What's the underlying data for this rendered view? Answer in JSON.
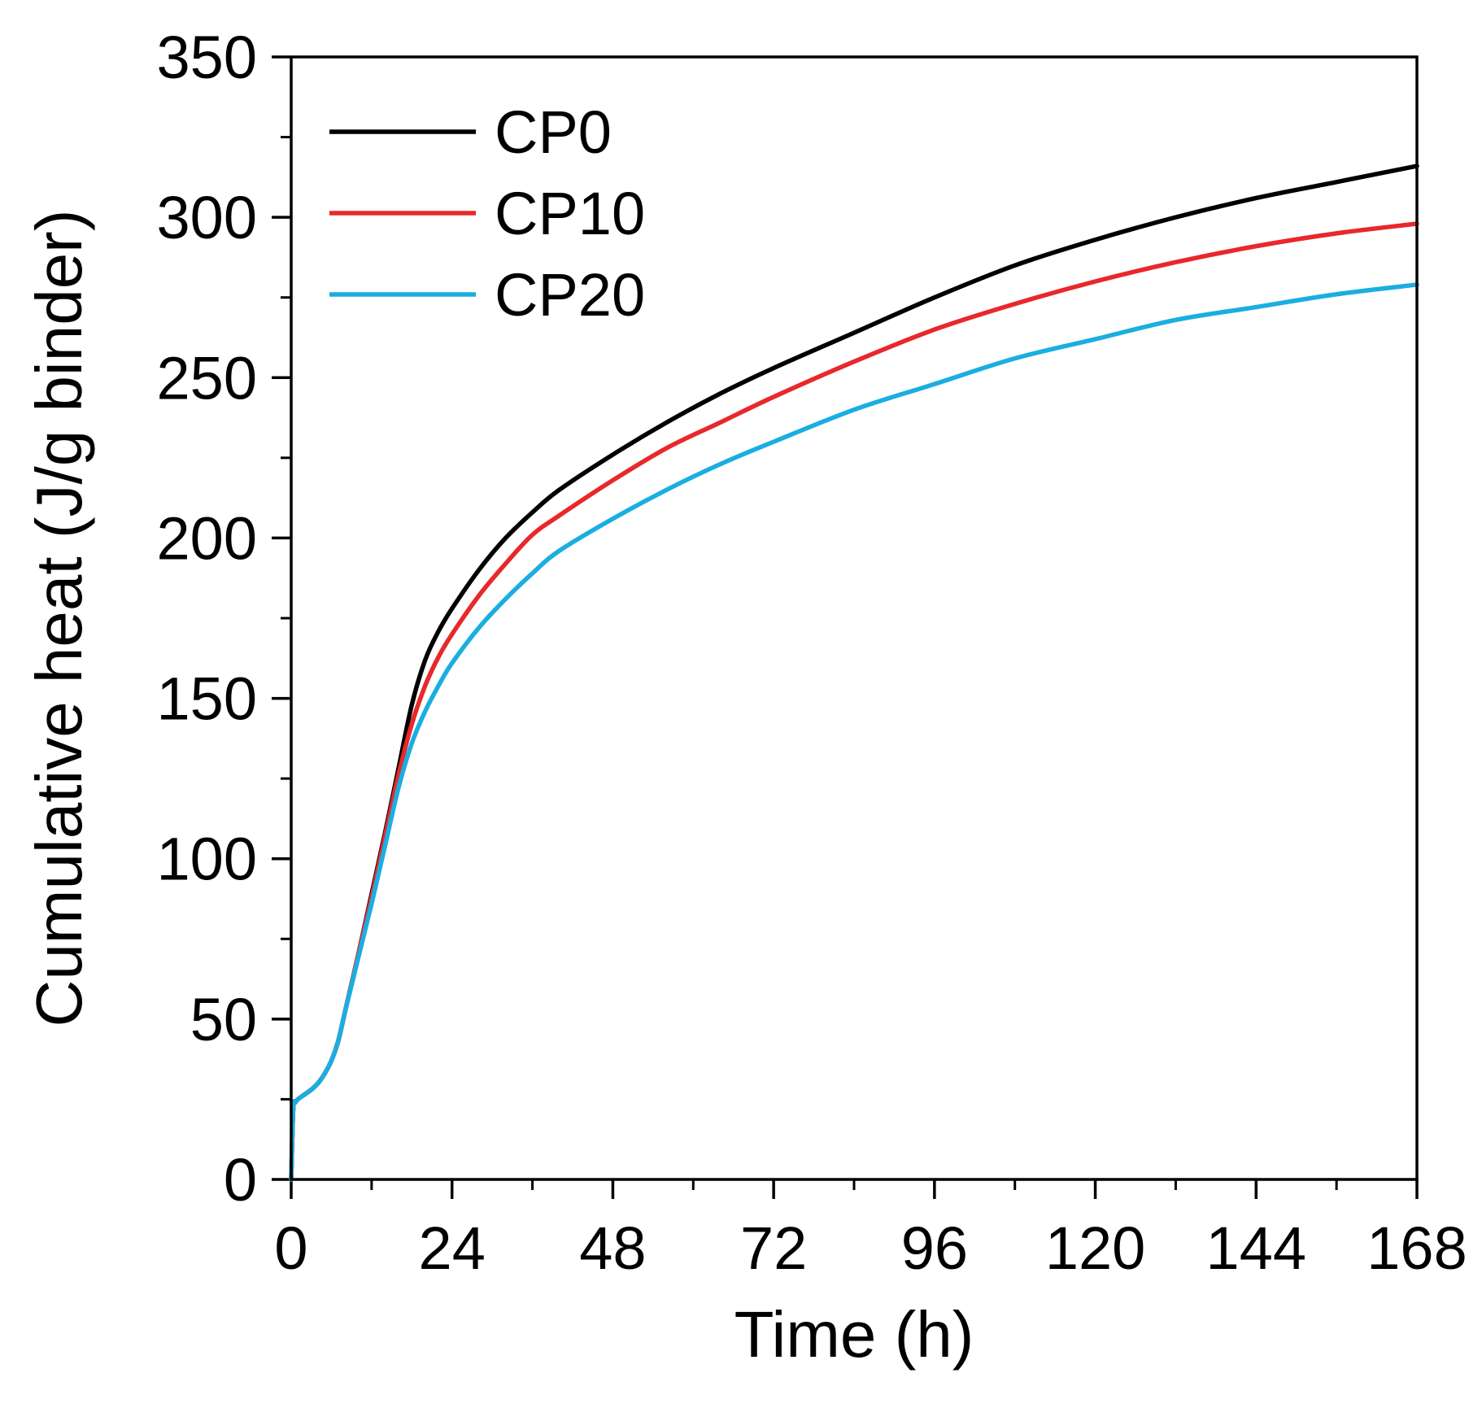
{
  "chart_data": {
    "type": "line",
    "title": "",
    "xlabel": "Time (h)",
    "ylabel": "Cumulative heat (J/g binder)",
    "xlim": [
      0,
      168
    ],
    "ylim": [
      0,
      350
    ],
    "xticks": [
      0,
      24,
      48,
      72,
      96,
      120,
      144,
      168
    ],
    "xtick_labels": [
      "0",
      "24",
      "48",
      "72",
      "96",
      "120",
      "144",
      "168"
    ],
    "yticks": [
      0,
      50,
      100,
      150,
      200,
      250,
      300,
      350
    ],
    "ytick_labels": [
      "0",
      "50",
      "100",
      "150",
      "200",
      "250",
      "300",
      "350"
    ],
    "x_minor_step": 12,
    "y_minor_step": 25,
    "grid": false,
    "legend_position": "top-left",
    "series": [
      {
        "name": "CP0",
        "color": "#000000",
        "x": [
          0,
          0.3,
          0.6,
          1,
          2,
          3,
          4,
          5,
          6,
          7,
          8,
          10,
          12,
          14,
          16,
          18,
          20,
          22,
          24,
          28,
          32,
          36,
          40,
          48,
          56,
          64,
          72,
          84,
          96,
          108,
          120,
          132,
          144,
          156,
          168
        ],
        "y": [
          0,
          22,
          24,
          25,
          26.5,
          28,
          30,
          33,
          37,
          43,
          52,
          70,
          89,
          108,
          128,
          148,
          162,
          171,
          178,
          190,
          200,
          208,
          215,
          226,
          236,
          245,
          253,
          264,
          275,
          285,
          293,
          300,
          306,
          311,
          316
        ]
      },
      {
        "name": "CP10",
        "color": "#e8282b",
        "x": [
          0,
          0.3,
          0.6,
          1,
          2,
          3,
          4,
          5,
          6,
          7,
          8,
          10,
          12,
          14,
          16,
          18,
          20,
          22,
          24,
          28,
          32,
          36,
          40,
          48,
          56,
          64,
          72,
          84,
          96,
          108,
          120,
          132,
          144,
          156,
          168
        ],
        "y": [
          0,
          22,
          24,
          25,
          26.5,
          28,
          30,
          33,
          37,
          43,
          52,
          70,
          88,
          107,
          126,
          142,
          154,
          163,
          170,
          182,
          192,
          201,
          207,
          218,
          228,
          236,
          244,
          255,
          265,
          273,
          280,
          286,
          291,
          295,
          298
        ]
      },
      {
        "name": "CP20",
        "color": "#1aaee1",
        "x": [
          0,
          0.3,
          0.6,
          1,
          2,
          3,
          4,
          5,
          6,
          7,
          8,
          10,
          12,
          14,
          16,
          18,
          20,
          22,
          24,
          28,
          32,
          36,
          40,
          48,
          56,
          64,
          72,
          84,
          96,
          108,
          120,
          132,
          144,
          156,
          168
        ],
        "y": [
          0,
          22,
          24,
          25,
          26.5,
          28,
          30,
          33,
          37,
          43,
          52,
          69,
          86,
          104,
          122,
          136,
          146,
          154,
          161,
          172,
          181,
          189,
          196,
          206,
          215,
          223,
          230,
          240,
          248,
          256,
          262,
          268,
          272,
          276,
          279
        ]
      }
    ]
  }
}
